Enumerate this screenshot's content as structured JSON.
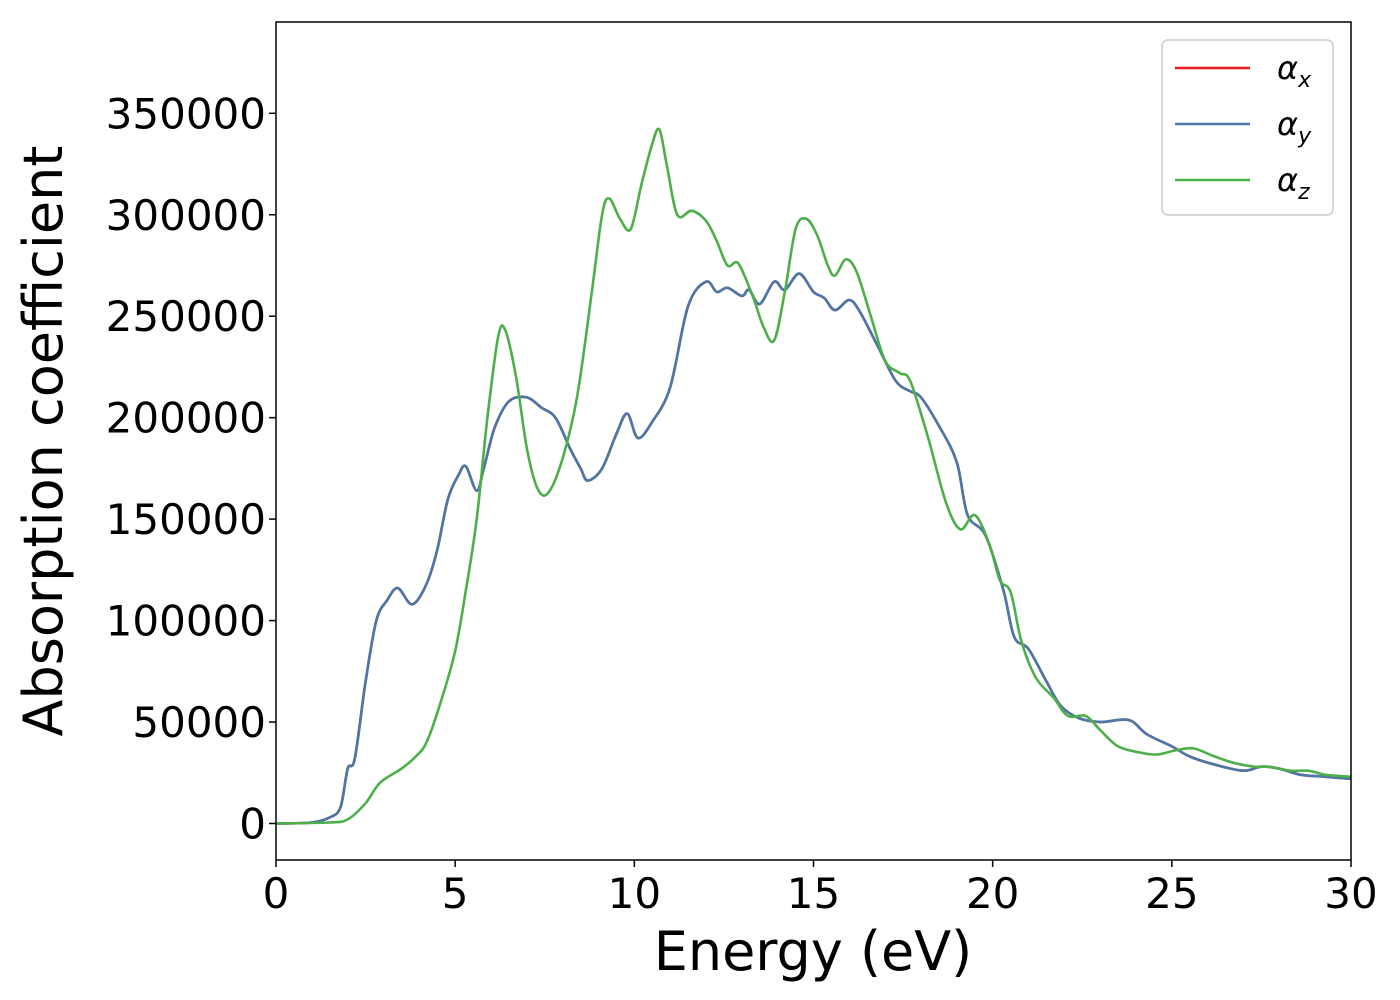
{
  "chart_data": {
    "type": "line",
    "title": "",
    "xlabel": "Energy (eV)",
    "ylabel": "Absorption coefficient",
    "xlim": [
      0,
      30
    ],
    "ylim": [
      -18000,
      395000
    ],
    "xticks": [
      0,
      5,
      10,
      15,
      20,
      25,
      30
    ],
    "yticks": [
      0,
      50000,
      100000,
      150000,
      200000,
      250000,
      300000,
      350000
    ],
    "grid": false,
    "legend_position": "top-right",
    "series": [
      {
        "name": "α",
        "subscript": "x",
        "color": "#e41a1c",
        "points": [
          [
            0,
            0
          ],
          [
            1,
            500
          ],
          [
            1.5,
            3000
          ],
          [
            1.8,
            8000
          ],
          [
            2,
            27000
          ],
          [
            2.2,
            32000
          ],
          [
            2.5,
            70000
          ],
          [
            2.8,
            100000
          ],
          [
            3.1,
            110000
          ],
          [
            3.4,
            116000
          ],
          [
            3.8,
            108000
          ],
          [
            4.2,
            118000
          ],
          [
            4.5,
            135000
          ],
          [
            4.8,
            160000
          ],
          [
            5.1,
            172000
          ],
          [
            5.3,
            176000
          ],
          [
            5.6,
            164000
          ],
          [
            5.8,
            175000
          ],
          [
            6.1,
            195000
          ],
          [
            6.5,
            208000
          ],
          [
            7,
            210000
          ],
          [
            7.4,
            205000
          ],
          [
            7.8,
            200000
          ],
          [
            8.2,
            185000
          ],
          [
            8.5,
            175000
          ],
          [
            8.7,
            169000
          ],
          [
            9.1,
            175000
          ],
          [
            9.5,
            192000
          ],
          [
            9.8,
            202000
          ],
          [
            10.1,
            190000
          ],
          [
            10.5,
            198000
          ],
          [
            11,
            215000
          ],
          [
            11.5,
            255000
          ],
          [
            12,
            267000
          ],
          [
            12.3,
            262000
          ],
          [
            12.6,
            264000
          ],
          [
            13,
            260000
          ],
          [
            13.2,
            263000
          ],
          [
            13.5,
            256000
          ],
          [
            13.9,
            267000
          ],
          [
            14.2,
            263000
          ],
          [
            14.6,
            271000
          ],
          [
            15,
            262000
          ],
          [
            15.3,
            259000
          ],
          [
            15.6,
            253000
          ],
          [
            16,
            258000
          ],
          [
            16.3,
            252000
          ],
          [
            16.8,
            235000
          ],
          [
            17.3,
            218000
          ],
          [
            17.7,
            213000
          ],
          [
            18,
            210000
          ],
          [
            18.5,
            196000
          ],
          [
            19,
            178000
          ],
          [
            19.3,
            152000
          ],
          [
            19.8,
            142000
          ],
          [
            20.3,
            115000
          ],
          [
            20.6,
            92000
          ],
          [
            21,
            86000
          ],
          [
            21.5,
            70000
          ],
          [
            21.9,
            58000
          ],
          [
            22.4,
            52000
          ],
          [
            23,
            50000
          ],
          [
            23.8,
            51000
          ],
          [
            24.3,
            44000
          ],
          [
            25,
            38000
          ],
          [
            25.5,
            33000
          ],
          [
            26.2,
            29000
          ],
          [
            27,
            26000
          ],
          [
            27.5,
            28000
          ],
          [
            28,
            27000
          ],
          [
            28.6,
            24000
          ],
          [
            29.3,
            23000
          ],
          [
            30,
            22000
          ]
        ]
      },
      {
        "name": "α",
        "subscript": "y",
        "color": "#4a78a8",
        "points": [
          [
            0,
            0
          ],
          [
            1,
            500
          ],
          [
            1.5,
            3000
          ],
          [
            1.8,
            8000
          ],
          [
            2,
            27000
          ],
          [
            2.2,
            32000
          ],
          [
            2.5,
            70000
          ],
          [
            2.8,
            100000
          ],
          [
            3.1,
            110000
          ],
          [
            3.4,
            116000
          ],
          [
            3.8,
            108000
          ],
          [
            4.2,
            118000
          ],
          [
            4.5,
            135000
          ],
          [
            4.8,
            160000
          ],
          [
            5.1,
            172000
          ],
          [
            5.3,
            176000
          ],
          [
            5.6,
            164000
          ],
          [
            5.8,
            175000
          ],
          [
            6.1,
            195000
          ],
          [
            6.5,
            208000
          ],
          [
            7,
            210000
          ],
          [
            7.4,
            205000
          ],
          [
            7.8,
            200000
          ],
          [
            8.2,
            185000
          ],
          [
            8.5,
            175000
          ],
          [
            8.7,
            169000
          ],
          [
            9.1,
            175000
          ],
          [
            9.5,
            192000
          ],
          [
            9.8,
            202000
          ],
          [
            10.1,
            190000
          ],
          [
            10.5,
            198000
          ],
          [
            11,
            215000
          ],
          [
            11.5,
            255000
          ],
          [
            12,
            267000
          ],
          [
            12.3,
            262000
          ],
          [
            12.6,
            264000
          ],
          [
            13,
            260000
          ],
          [
            13.2,
            263000
          ],
          [
            13.5,
            256000
          ],
          [
            13.9,
            267000
          ],
          [
            14.2,
            263000
          ],
          [
            14.6,
            271000
          ],
          [
            15,
            262000
          ],
          [
            15.3,
            259000
          ],
          [
            15.6,
            253000
          ],
          [
            16,
            258000
          ],
          [
            16.3,
            252000
          ],
          [
            16.8,
            235000
          ],
          [
            17.3,
            218000
          ],
          [
            17.7,
            213000
          ],
          [
            18,
            210000
          ],
          [
            18.5,
            196000
          ],
          [
            19,
            178000
          ],
          [
            19.3,
            152000
          ],
          [
            19.8,
            142000
          ],
          [
            20.3,
            115000
          ],
          [
            20.6,
            92000
          ],
          [
            21,
            86000
          ],
          [
            21.5,
            70000
          ],
          [
            21.9,
            58000
          ],
          [
            22.4,
            52000
          ],
          [
            23,
            50000
          ],
          [
            23.8,
            51000
          ],
          [
            24.3,
            44000
          ],
          [
            25,
            38000
          ],
          [
            25.5,
            33000
          ],
          [
            26.2,
            29000
          ],
          [
            27,
            26000
          ],
          [
            27.5,
            28000
          ],
          [
            28,
            27000
          ],
          [
            28.6,
            24000
          ],
          [
            29.3,
            23000
          ],
          [
            30,
            22000
          ]
        ]
      },
      {
        "name": "α",
        "subscript": "z",
        "color": "#4daf4a",
        "points": [
          [
            0,
            0
          ],
          [
            1.5,
            500
          ],
          [
            2,
            2000
          ],
          [
            2.5,
            10000
          ],
          [
            2.9,
            20000
          ],
          [
            3.5,
            27000
          ],
          [
            3.9,
            33000
          ],
          [
            4.2,
            40000
          ],
          [
            4.6,
            60000
          ],
          [
            5,
            85000
          ],
          [
            5.3,
            115000
          ],
          [
            5.6,
            150000
          ],
          [
            5.9,
            200000
          ],
          [
            6.2,
            240000
          ],
          [
            6.4,
            243000
          ],
          [
            6.7,
            220000
          ],
          [
            7,
            185000
          ],
          [
            7.3,
            165000
          ],
          [
            7.6,
            163000
          ],
          [
            8,
            180000
          ],
          [
            8.4,
            210000
          ],
          [
            8.8,
            260000
          ],
          [
            9.1,
            300000
          ],
          [
            9.3,
            308000
          ],
          [
            9.6,
            298000
          ],
          [
            9.9,
            293000
          ],
          [
            10.2,
            315000
          ],
          [
            10.5,
            335000
          ],
          [
            10.7,
            342000
          ],
          [
            10.9,
            325000
          ],
          [
            11.2,
            300000
          ],
          [
            11.6,
            302000
          ],
          [
            12,
            297000
          ],
          [
            12.3,
            287000
          ],
          [
            12.6,
            275000
          ],
          [
            12.9,
            276000
          ],
          [
            13.3,
            260000
          ],
          [
            13.6,
            245000
          ],
          [
            13.9,
            238000
          ],
          [
            14.2,
            262000
          ],
          [
            14.5,
            293000
          ],
          [
            14.8,
            298000
          ],
          [
            15.1,
            290000
          ],
          [
            15.4,
            275000
          ],
          [
            15.6,
            270000
          ],
          [
            15.9,
            278000
          ],
          [
            16.2,
            272000
          ],
          [
            16.6,
            250000
          ],
          [
            17,
            228000
          ],
          [
            17.4,
            222000
          ],
          [
            17.7,
            218000
          ],
          [
            18.2,
            190000
          ],
          [
            18.7,
            158000
          ],
          [
            19.1,
            145000
          ],
          [
            19.5,
            152000
          ],
          [
            19.9,
            138000
          ],
          [
            20.2,
            120000
          ],
          [
            20.5,
            114000
          ],
          [
            20.8,
            90000
          ],
          [
            21.2,
            72000
          ],
          [
            21.7,
            62000
          ],
          [
            22.1,
            53000
          ],
          [
            22.6,
            53000
          ],
          [
            23,
            46000
          ],
          [
            23.5,
            38000
          ],
          [
            24.1,
            35000
          ],
          [
            24.6,
            34000
          ],
          [
            25.1,
            36000
          ],
          [
            25.6,
            37000
          ],
          [
            26.2,
            33000
          ],
          [
            26.7,
            30000
          ],
          [
            27.3,
            28000
          ],
          [
            27.7,
            28000
          ],
          [
            28.3,
            26000
          ],
          [
            28.8,
            26000
          ],
          [
            29.3,
            24000
          ],
          [
            30,
            23000
          ]
        ]
      }
    ]
  }
}
